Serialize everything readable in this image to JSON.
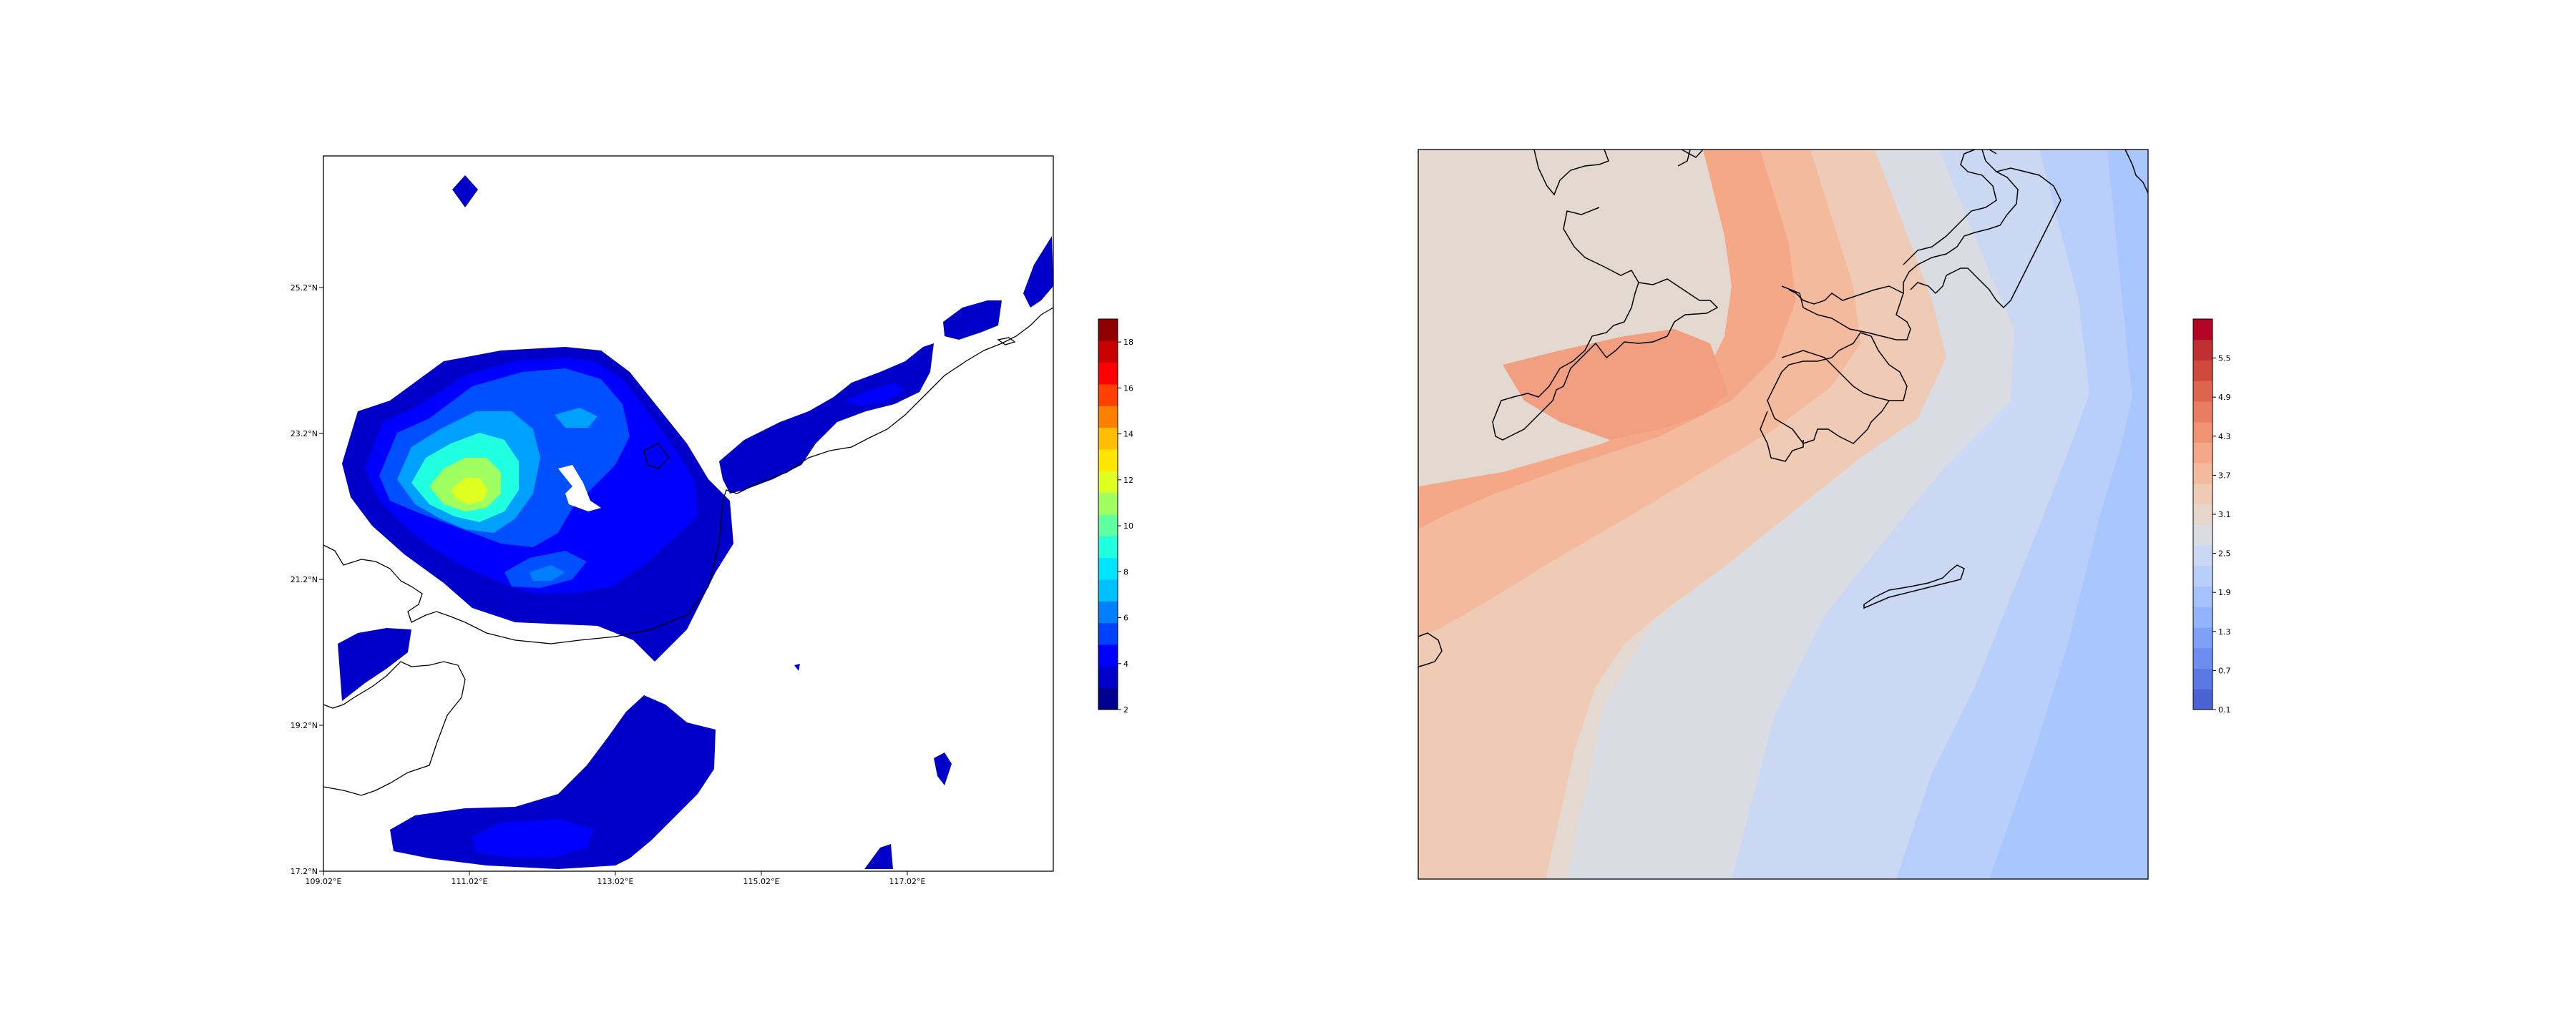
{
  "left_map": {
    "x_ticks": [
      "109.02°E",
      "111.02°E",
      "113.02°E",
      "115.02°E",
      "117.02°E"
    ],
    "y_ticks": [
      "17.2°N",
      "19.2°N",
      "21.2°N",
      "23.2°N",
      "25.2°N"
    ],
    "colorbar": {
      "colormap": "jet",
      "range": [
        2,
        19
      ],
      "tick_labels": [
        "2",
        "4",
        "6",
        "8",
        "10",
        "12",
        "14",
        "16",
        "18"
      ],
      "colors": [
        "#00008f",
        "#0000c8",
        "#0000ff",
        "#0040ff",
        "#0080ff",
        "#00bfff",
        "#00e5ff",
        "#20ffdf",
        "#60ff9f",
        "#9fff60",
        "#dfff20",
        "#ffe500",
        "#ffbf00",
        "#ff8000",
        "#ff4000",
        "#ff0000",
        "#c80000",
        "#8f0000"
      ]
    }
  },
  "right_map": {
    "colorbar": {
      "colormap": "coolwarm",
      "range": [
        0.1,
        6.1
      ],
      "tick_labels": [
        "0.1",
        "0.7",
        "1.3",
        "1.9",
        "2.5",
        "3.1",
        "3.7",
        "4.3",
        "4.9",
        "5.5"
      ],
      "colors": [
        "#4a63d3",
        "#5a78e3",
        "#6b8ef0",
        "#7ea1f8",
        "#92b3fd",
        "#a5c2fe",
        "#b8cffb",
        "#cad8f4",
        "#d9dce3",
        "#e6d6cc",
        "#efcab5",
        "#f4ba9e",
        "#f5a888",
        "#f19373",
        "#e87d60",
        "#dd654e",
        "#cf4a3d",
        "#bf2f32",
        "#b40426"
      ]
    }
  }
}
